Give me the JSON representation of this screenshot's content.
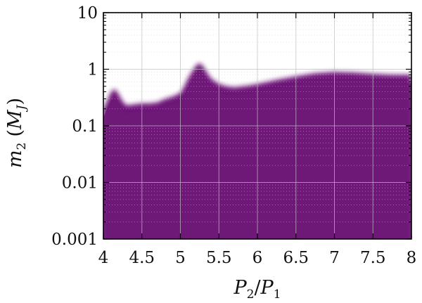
{
  "chart_data": {
    "type": "area",
    "xlabel": "P_2/P_1",
    "xlabel_display": {
      "main": "P",
      "sub1": "2",
      "sep": "/",
      "main2": "P",
      "sub2": "1"
    },
    "ylabel": "m_2 (M_J)",
    "ylabel_display": {
      "main": "m",
      "sub": "2",
      "open": "(",
      "unit": "M",
      "unit_sub": "J",
      "close": ")"
    },
    "xlim": [
      4,
      8
    ],
    "ylim": [
      0.001,
      10
    ],
    "yscale": "log",
    "grid": true,
    "x_ticks": [
      "4",
      "4.5",
      "5",
      "5.5",
      "6",
      "6.5",
      "7",
      "7.5",
      "8"
    ],
    "x_tick_values": [
      4,
      4.5,
      5,
      5.5,
      6,
      6.5,
      7,
      7.5,
      8
    ],
    "y_ticks": [
      "0.001",
      "0.01",
      "0.1",
      "1",
      "10"
    ],
    "y_tick_values": [
      0.001,
      0.01,
      0.1,
      1,
      10
    ],
    "fill_color": "#6e1878",
    "boundary": {
      "x": [
        4.0,
        4.05,
        4.1,
        4.15,
        4.2,
        4.25,
        4.3,
        4.4,
        4.5,
        4.6,
        4.7,
        4.8,
        4.9,
        5.0,
        5.05,
        5.1,
        5.15,
        5.2,
        5.25,
        5.3,
        5.35,
        5.4,
        5.5,
        5.6,
        5.7,
        5.8,
        5.9,
        6.0,
        6.25,
        6.5,
        6.75,
        7.0,
        7.25,
        7.5,
        7.75,
        8.0
      ],
      "y": [
        0.2,
        0.28,
        0.4,
        0.45,
        0.36,
        0.27,
        0.23,
        0.24,
        0.25,
        0.25,
        0.26,
        0.3,
        0.33,
        0.38,
        0.5,
        0.7,
        0.9,
        1.15,
        1.3,
        1.1,
        0.85,
        0.68,
        0.55,
        0.5,
        0.48,
        0.5,
        0.52,
        0.55,
        0.65,
        0.75,
        0.85,
        0.9,
        0.88,
        0.83,
        0.8,
        0.8
      ]
    }
  }
}
